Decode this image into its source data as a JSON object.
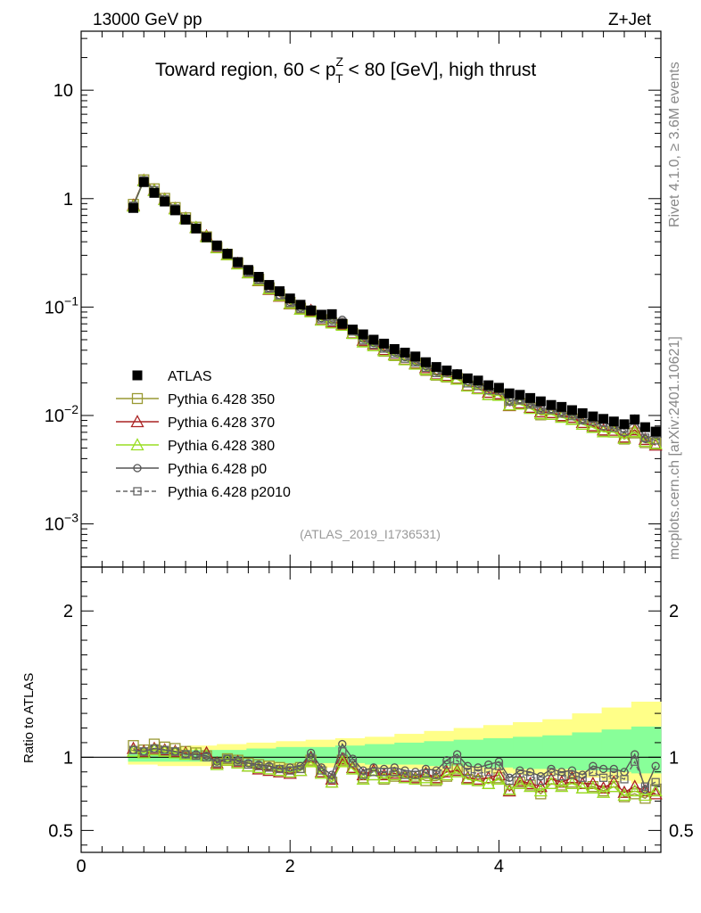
{
  "header": {
    "left": "13000 GeV pp",
    "right": "Z+Jet"
  },
  "plot_title": {
    "prefix": "Toward region, 60 < p",
    "sup": "Z",
    "sub": "T",
    "suffix": " < 80 [GeV], high thrust"
  },
  "side_labels": {
    "rivet": "Rivet 4.1.0, ≥ 3.6M events",
    "mcplots": "mcplots.cern.ch [arXiv:2401.10621]"
  },
  "analysis_id": "(ATLAS_2019_I1736531)",
  "ratio_ylabel": "Ratio to ATLAS",
  "chart_data": {
    "type": "line",
    "x_scale": "linear",
    "xlim": [
      0,
      5.55
    ],
    "x_ticks": [
      0,
      2,
      4
    ],
    "x_tick_labels": [
      "0",
      "2",
      "4"
    ],
    "main_panel": {
      "y_scale": "log",
      "ylim": [
        0.0004,
        35
      ],
      "y_ticks": [
        {
          "value": 10,
          "base": "10",
          "exp": ""
        },
        {
          "value": 1,
          "base": "1",
          "exp": ""
        },
        {
          "value": 0.1,
          "base": "10",
          "exp": "−1"
        },
        {
          "value": 0.01,
          "base": "10",
          "exp": "−2"
        },
        {
          "value": 0.001,
          "base": "10",
          "exp": "−3"
        }
      ]
    },
    "ratio_panel": {
      "ylim": [
        0.35,
        2.3
      ],
      "y_ticks": [
        2,
        1,
        0.5
      ],
      "y_tick_labels": [
        "2",
        "1",
        "0.5"
      ],
      "reference_line": 1,
      "band_yellow": [
        [
          0.95,
          1.06
        ],
        [
          0.94,
          1.07
        ],
        [
          0.94,
          1.08
        ],
        [
          0.94,
          1.09
        ],
        [
          0.94,
          1.1
        ],
        [
          0.93,
          1.11
        ],
        [
          0.93,
          1.12
        ],
        [
          0.93,
          1.13
        ],
        [
          0.92,
          1.14
        ],
        [
          0.92,
          1.16
        ],
        [
          0.91,
          1.18
        ],
        [
          0.9,
          1.2
        ],
        [
          0.89,
          1.22
        ],
        [
          0.88,
          1.24
        ],
        [
          0.87,
          1.26
        ],
        [
          0.86,
          1.3
        ],
        [
          0.84,
          1.34
        ],
        [
          0.82,
          1.38
        ]
      ],
      "band_green": [
        [
          0.97,
          1.03
        ],
        [
          0.97,
          1.04
        ],
        [
          0.97,
          1.05
        ],
        [
          0.97,
          1.05
        ],
        [
          0.97,
          1.06
        ],
        [
          0.96,
          1.07
        ],
        [
          0.96,
          1.07
        ],
        [
          0.96,
          1.08
        ],
        [
          0.95,
          1.09
        ],
        [
          0.95,
          1.1
        ],
        [
          0.94,
          1.11
        ],
        [
          0.94,
          1.12
        ],
        [
          0.93,
          1.13
        ],
        [
          0.92,
          1.14
        ],
        [
          0.92,
          1.15
        ],
        [
          0.91,
          1.17
        ],
        [
          0.9,
          1.19
        ],
        [
          0.89,
          1.21
        ]
      ]
    },
    "x": [
      0.5,
      0.6,
      0.7,
      0.8,
      0.9,
      1.0,
      1.1,
      1.2,
      1.3,
      1.4,
      1.5,
      1.6,
      1.7,
      1.8,
      1.9,
      2.0,
      2.1,
      2.2,
      2.3,
      2.4,
      2.5,
      2.6,
      2.7,
      2.8,
      2.9,
      3.0,
      3.1,
      3.2,
      3.3,
      3.4,
      3.5,
      3.6,
      3.7,
      3.8,
      3.9,
      4.0,
      4.1,
      4.2,
      4.3,
      4.4,
      4.5,
      4.6,
      4.7,
      4.8,
      4.9,
      5.0,
      5.1,
      5.2,
      5.3,
      5.4,
      5.5
    ],
    "series": [
      {
        "name": "ATLAS",
        "role": "data",
        "marker": "filled-square",
        "color": "#000000",
        "values": [
          0.82,
          1.42,
          1.13,
          0.94,
          0.78,
          0.64,
          0.53,
          0.44,
          0.37,
          0.31,
          0.26,
          0.22,
          0.19,
          0.16,
          0.14,
          0.12,
          0.105,
          0.093,
          0.085,
          0.086,
          0.07,
          0.062,
          0.056,
          0.05,
          0.046,
          0.041,
          0.038,
          0.035,
          0.031,
          0.028,
          0.026,
          0.024,
          0.022,
          0.021,
          0.019,
          0.018,
          0.016,
          0.0155,
          0.0145,
          0.0135,
          0.0125,
          0.012,
          0.0112,
          0.0105,
          0.0098,
          0.0093,
          0.0088,
          0.0083,
          0.0092,
          0.0078,
          0.0071
        ]
      },
      {
        "name": "Pythia 6.428 350",
        "marker": "open-square",
        "color": "#999933",
        "ratio": [
          1.08,
          1.05,
          1.09,
          1.07,
          1.06,
          1.04,
          1.03,
          1.01,
          0.96,
          0.99,
          0.98,
          0.96,
          0.95,
          0.94,
          0.93,
          0.92,
          0.93,
          0.98,
          0.9,
          0.83,
          0.98,
          0.92,
          0.86,
          0.88,
          0.85,
          0.87,
          0.86,
          0.87,
          0.84,
          0.84,
          0.87,
          0.92,
          0.85,
          0.84,
          0.82,
          0.86,
          0.78,
          0.83,
          0.81,
          0.75,
          0.82,
          0.81,
          0.83,
          0.79,
          0.8,
          0.77,
          0.8,
          0.73,
          0.75,
          0.72,
          0.78
        ]
      },
      {
        "name": "Pythia 6.428 370",
        "marker": "open-triangle",
        "color": "#aa2222",
        "ratio": [
          1.06,
          1.04,
          1.06,
          1.05,
          1.04,
          1.03,
          1.02,
          1.03,
          0.96,
          0.98,
          0.97,
          0.94,
          0.92,
          0.91,
          0.9,
          0.89,
          0.91,
          1.0,
          0.9,
          0.85,
          0.99,
          0.93,
          0.88,
          0.91,
          0.88,
          0.89,
          0.87,
          0.86,
          0.89,
          0.86,
          0.9,
          0.91,
          0.86,
          0.85,
          0.86,
          0.88,
          0.77,
          0.84,
          0.82,
          0.8,
          0.85,
          0.83,
          0.86,
          0.82,
          0.82,
          0.79,
          0.83,
          0.76,
          0.8,
          0.77,
          0.75
        ]
      },
      {
        "name": "Pythia 6.428 380",
        "marker": "open-triangle",
        "color": "#99dd22",
        "ratio": [
          1.04,
          1.03,
          1.05,
          1.04,
          1.03,
          1.02,
          1.02,
          1.01,
          0.95,
          0.98,
          0.96,
          0.94,
          0.93,
          0.92,
          0.91,
          0.9,
          0.91,
          0.97,
          0.89,
          0.83,
          0.97,
          0.92,
          0.85,
          0.88,
          0.86,
          0.88,
          0.86,
          0.85,
          0.86,
          0.85,
          0.88,
          0.9,
          0.85,
          0.84,
          0.82,
          0.85,
          0.78,
          0.82,
          0.8,
          0.77,
          0.82,
          0.8,
          0.82,
          0.79,
          0.79,
          0.76,
          0.8,
          0.74,
          0.77,
          0.74,
          0.77
        ]
      },
      {
        "name": "Pythia 6.428 p0",
        "marker": "open-circle",
        "color": "#555555",
        "ratio": [
          1.05,
          1.04,
          1.06,
          1.05,
          1.04,
          1.02,
          1.02,
          1.01,
          0.97,
          0.99,
          0.98,
          0.96,
          0.95,
          0.94,
          0.92,
          0.93,
          0.94,
          1.03,
          0.93,
          0.88,
          1.09,
          0.99,
          0.91,
          0.93,
          0.92,
          0.93,
          0.91,
          0.9,
          0.92,
          0.91,
          0.98,
          1.02,
          0.94,
          0.93,
          0.95,
          0.97,
          0.86,
          0.91,
          0.9,
          0.87,
          0.92,
          0.9,
          0.91,
          0.88,
          0.94,
          0.92,
          0.92,
          0.9,
          1.02,
          0.78,
          0.94
        ]
      },
      {
        "name": "Pythia 6.428 p2010",
        "marker": "open-square-dashed",
        "color": "#666666",
        "ratio": [
          1.05,
          1.04,
          1.06,
          1.05,
          1.04,
          1.02,
          1.01,
          1.0,
          0.96,
          0.99,
          0.97,
          0.95,
          0.94,
          0.93,
          0.92,
          0.91,
          0.92,
          1.0,
          0.91,
          0.85,
          1.04,
          0.96,
          0.88,
          0.9,
          0.9,
          0.9,
          0.88,
          0.88,
          0.89,
          0.88,
          0.95,
          0.98,
          0.9,
          0.89,
          0.9,
          0.94,
          0.84,
          0.89,
          0.87,
          0.84,
          0.9,
          0.87,
          0.88,
          0.86,
          0.9,
          0.86,
          0.88,
          0.85,
          0.97,
          0.8,
          0.83
        ]
      }
    ],
    "legend_position": "middle-left"
  }
}
